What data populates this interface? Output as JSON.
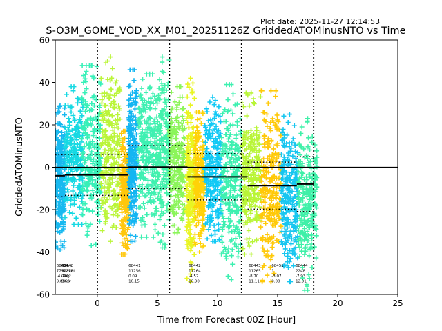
{
  "plot_date": "Plot date: 2025-11-27 12:14:53",
  "chart_data": {
    "type": "scatter",
    "title": "S-O3M_GOME_VOD_XX_M01_20251126Z GriddedATOMinusNTO vs Time",
    "xlabel": "Time from Forecast 00Z [Hour]",
    "ylabel": "GriddedATOMinusNTO",
    "xlim": [
      -3.5,
      25
    ],
    "ylim": [
      -60,
      60
    ],
    "xticks": [
      0,
      5,
      10,
      15,
      20,
      25
    ],
    "yticks": [
      -60,
      -40,
      -20,
      0,
      20,
      40,
      60
    ],
    "marker": "+",
    "grid": false,
    "reference_line": 0,
    "vertical_dotted_lines": [
      0,
      6,
      12,
      18
    ],
    "stats_row_labels": [
      "Orbit",
      "NValid",
      "Avg",
      "Stdv"
    ],
    "orbits": [
      {
        "orbit": "68439",
        "nvalid": "7791",
        "avg": -4.01,
        "stdv": 9.89,
        "xstart": -3.5,
        "xend": -2.7,
        "color": "#17b9f0",
        "ymin": -39,
        "ymax": 29,
        "stats_x": -3.4
      },
      {
        "orbit": "68440",
        "nvalid": "11278",
        "avg": -3.62,
        "stdv": 9.68,
        "xstart": -2.7,
        "xend": -1.2,
        "color": "#16d9e3",
        "ymin": -27,
        "ymax": 38,
        "stats_x": -3.0
      },
      {
        "orbit": "68440",
        "nvalid": "",
        "avg": null,
        "stdv": null,
        "xstart": -1.3,
        "xend": 0.3,
        "color": "#37f0b8",
        "ymin": -37,
        "ymax": 48,
        "stats_x": null
      },
      {
        "orbit": "68441",
        "nvalid": "11256",
        "avg": 0.09,
        "stdv": 10.15,
        "xstart": 0.3,
        "xend": 1.9,
        "color": "#baf538",
        "ymin": -35,
        "ymax": 52,
        "stats_x": 2.6
      },
      {
        "orbit": "68441",
        "nvalid": "",
        "avg": null,
        "stdv": null,
        "xstart": 2.0,
        "xend": 2.6,
        "color": "#ffc70c",
        "ymin": -41,
        "ymax": 17,
        "stats_x": null
      },
      {
        "orbit": "68441",
        "nvalid": "",
        "avg": null,
        "stdv": null,
        "xstart": 2.6,
        "xend": 3.3,
        "color": "#13b5f2",
        "ymin": -35,
        "ymax": 46,
        "stats_x": null
      },
      {
        "orbit": "68441",
        "nvalid": "",
        "avg": null,
        "stdv": null,
        "xstart": 3.4,
        "xend": 4.8,
        "color": "#3ef0b2",
        "ymin": -33,
        "ymax": 44,
        "stats_x": null
      },
      {
        "orbit": "68441",
        "nvalid": "",
        "avg": null,
        "stdv": null,
        "xstart": 4.8,
        "xend": 6.0,
        "color": "#42f2ac",
        "ymin": -38,
        "ymax": 52,
        "stats_x": null
      },
      {
        "orbit": "68442",
        "nvalid": "11264",
        "avg": -4.52,
        "stdv": 10.9,
        "xstart": 6.0,
        "xend": 7.3,
        "color": "#8bf55a",
        "ymin": -31,
        "ymax": 38,
        "stats_x": 7.6
      },
      {
        "orbit": "68442",
        "nvalid": "",
        "avg": null,
        "stdv": null,
        "xstart": 7.4,
        "xend": 8.1,
        "color": "#e9f522",
        "ymin": -54,
        "ymax": 42,
        "stats_x": null
      },
      {
        "orbit": "68442",
        "nvalid": "",
        "avg": null,
        "stdv": null,
        "xstart": 8.1,
        "xend": 8.9,
        "color": "#ffd208",
        "ymin": -40,
        "ymax": 26,
        "stats_x": null
      },
      {
        "orbit": "68442",
        "nvalid": "",
        "avg": null,
        "stdv": null,
        "xstart": 8.9,
        "xend": 10.3,
        "color": "#10c9f5",
        "ymin": -35,
        "ymax": 33,
        "stats_x": null
      },
      {
        "orbit": "68442",
        "nvalid": "",
        "avg": null,
        "stdv": null,
        "xstart": 10.3,
        "xend": 12.0,
        "color": "#3cf0b0",
        "ymin": -53,
        "ymax": 39,
        "stats_x": null
      },
      {
        "orbit": "68443",
        "nvalid": "11265",
        "avg": -8.7,
        "stdv": 11.11,
        "xstart": 12.0,
        "xend": 13.6,
        "color": "#b8f536",
        "ymin": -41,
        "ymax": 35,
        "stats_x": 12.6
      },
      {
        "orbit": "68443",
        "nvalid": "",
        "avg": null,
        "stdv": null,
        "xstart": 13.6,
        "xend": 15.3,
        "color": "#ffc908",
        "ymin": -54,
        "ymax": 36,
        "stats_x": null
      },
      {
        "orbit": "68451",
        "nvalid": "1",
        "avg": -3.07,
        "stdv": 0.0,
        "xstart": 15.3,
        "xend": 16.7,
        "color": "#17c6f0",
        "ymin": -54,
        "ymax": 25,
        "stats_x": 14.5
      },
      {
        "orbit": "68444",
        "nvalid": "2248",
        "avg": -7.93,
        "stdv": 12.91,
        "xstart": 16.7,
        "xend": 18.3,
        "color": "#3ff0a8",
        "ymin": -58,
        "ymax": 23,
        "stats_x": 16.5
      }
    ],
    "mean_lines": [
      {
        "x": [
          -3.5,
          -2.7
        ],
        "avg": -4.01,
        "stdv": 9.89
      },
      {
        "x": [
          -2.7,
          2.6
        ],
        "avg": -3.62,
        "stdv": 9.68
      },
      {
        "x": [
          2.6,
          7.5
        ],
        "avg": 0.09,
        "stdv": 10.15
      },
      {
        "x": [
          7.5,
          12.5
        ],
        "avg": -4.52,
        "stdv": 10.9
      },
      {
        "x": [
          12.5,
          16.6
        ],
        "avg": -8.7,
        "stdv": 11.11
      },
      {
        "x": [
          16.6,
          18.0
        ],
        "avg": -7.93,
        "stdv": 12.91
      }
    ]
  }
}
